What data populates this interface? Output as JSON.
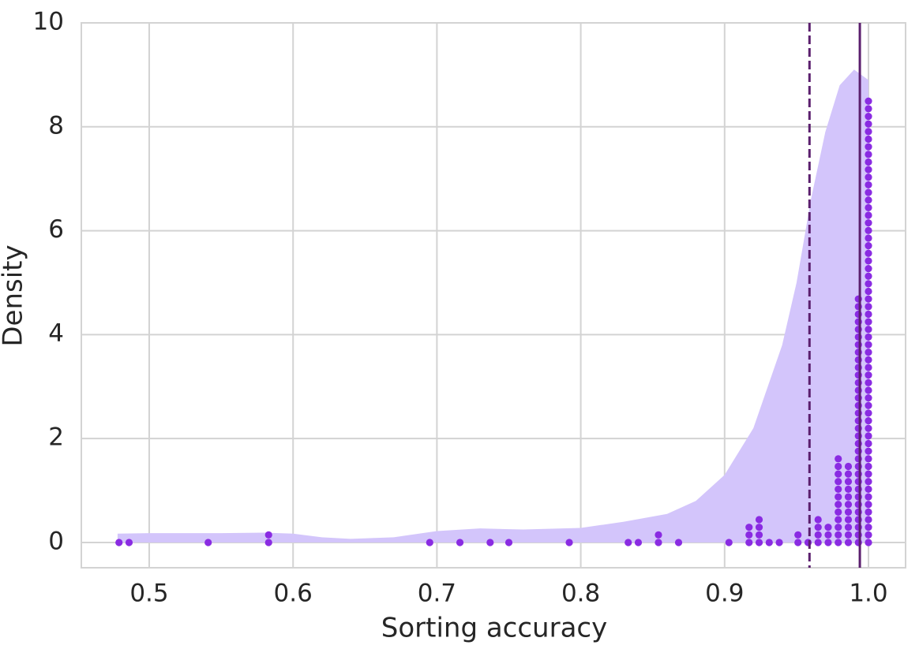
{
  "chart_data": {
    "type": "kde_strip",
    "xlabel": "Sorting accuracy",
    "ylabel": "Density",
    "xlim": [
      0.4528,
      1.0258
    ],
    "ylim": [
      -0.486,
      10
    ],
    "xticks": [
      0.5,
      0.6,
      0.7,
      0.8,
      0.9,
      {
        "value": 1,
        "label": "1.0"
      }
    ],
    "yticks": [
      0,
      2,
      4,
      6,
      8,
      10
    ],
    "grid": true,
    "kde": {
      "color": "#d3c5fb",
      "x": [
        0.478,
        0.5,
        0.55,
        0.58,
        0.6,
        0.62,
        0.64,
        0.67,
        0.7,
        0.73,
        0.76,
        0.8,
        0.83,
        0.86,
        0.88,
        0.9,
        0.92,
        0.94,
        0.95,
        0.96,
        0.97,
        0.98,
        0.99,
        1.0
      ],
      "y": [
        0.17,
        0.18,
        0.18,
        0.19,
        0.17,
        0.1,
        0.07,
        0.1,
        0.22,
        0.27,
        0.25,
        0.28,
        0.4,
        0.55,
        0.8,
        1.3,
        2.2,
        3.8,
        5.0,
        6.6,
        7.9,
        8.8,
        9.1,
        8.9
      ]
    },
    "points": {
      "color": "#8a2be2",
      "values": [
        0.479,
        0.486,
        0.541,
        0.583,
        0.583,
        0.695,
        0.716,
        0.737,
        0.75,
        0.792,
        0.833,
        0.84,
        0.854,
        0.854,
        0.868,
        0.903,
        0.917,
        0.917,
        0.917,
        0.924,
        0.924,
        0.924,
        0.924,
        0.931,
        0.938,
        0.951,
        0.951,
        0.958,
        0.965,
        0.965,
        0.965,
        0.965,
        0.972,
        0.972,
        0.972,
        0.979,
        0.979,
        0.979,
        0.979,
        0.979,
        0.979,
        0.979,
        0.979,
        0.979,
        0.979,
        0.979,
        0.979,
        0.986,
        0.986,
        0.986,
        0.986,
        0.986,
        0.986,
        0.986,
        0.986,
        0.986,
        0.986,
        0.986,
        0.993,
        0.993,
        0.993,
        0.993,
        0.993,
        0.993,
        0.993,
        0.993,
        0.993,
        0.993,
        0.993,
        0.993,
        0.993,
        0.993,
        0.993,
        0.993,
        0.993,
        0.993,
        0.993,
        0.993,
        0.993,
        0.993,
        0.993,
        0.993,
        0.993,
        0.993,
        0.993,
        0.993,
        0.993,
        0.993,
        0.993,
        0.993,
        0.993,
        1.0,
        1.0,
        1.0,
        1.0,
        1.0,
        1.0,
        1.0,
        1.0,
        1.0,
        1.0,
        1.0,
        1.0,
        1.0,
        1.0,
        1.0,
        1.0,
        1.0,
        1.0,
        1.0,
        1.0,
        1.0,
        1.0,
        1.0,
        1.0,
        1.0,
        1.0,
        1.0,
        1.0,
        1.0,
        1.0,
        1.0,
        1.0,
        1.0,
        1.0,
        1.0,
        1.0,
        1.0,
        1.0,
        1.0,
        1.0,
        1.0,
        1.0,
        1.0,
        1.0,
        1.0,
        1.0,
        1.0,
        1.0,
        1.0,
        1.0,
        1.0,
        1.0,
        1.0,
        1.0,
        1.0,
        1.0,
        1.0,
        1.0,
        1.0
      ]
    },
    "vlines": [
      {
        "x": 0.959,
        "style": "dashed",
        "color": "#5b1f6e"
      },
      {
        "x": 0.994,
        "style": "solid",
        "color": "#5b1f6e"
      }
    ]
  }
}
